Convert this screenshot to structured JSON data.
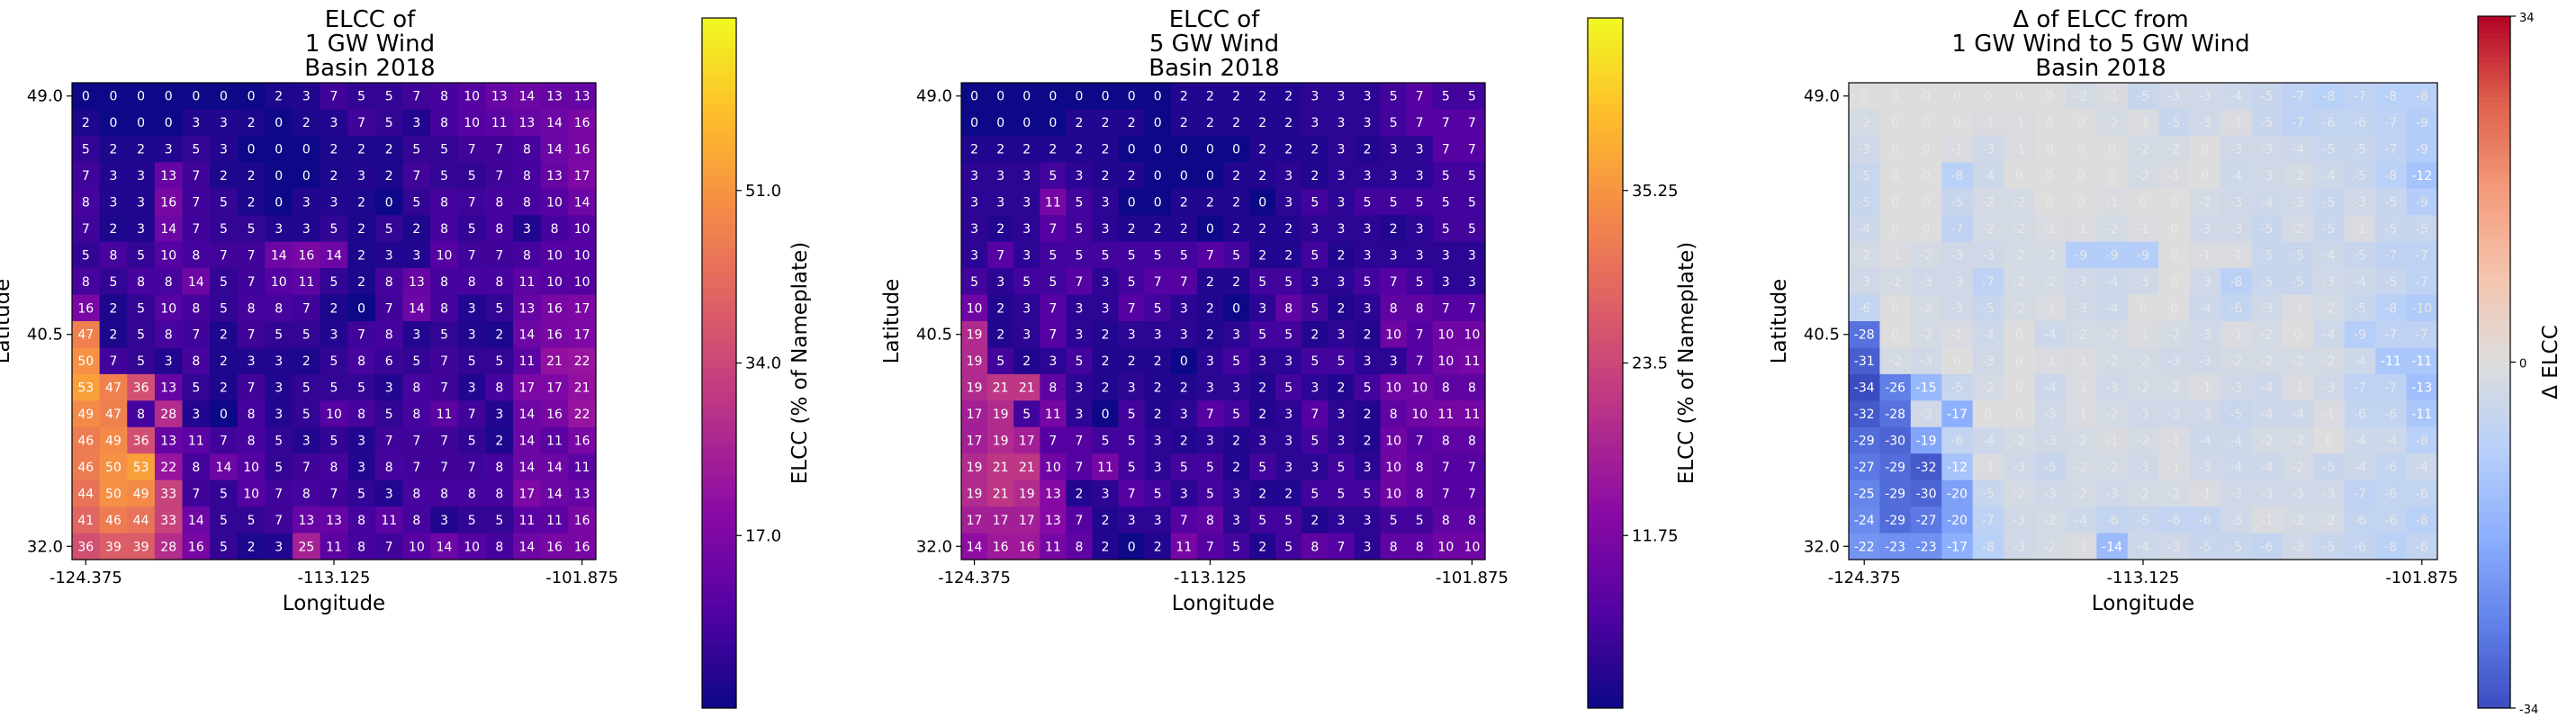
{
  "figure": {
    "panels": [
      {
        "title_lines": [
          "ELCC of",
          "1 GW Wind",
          "Basin 2018"
        ],
        "cbar_ticks": [
          17.0,
          34.0,
          51.0
        ],
        "cbar_label": "ELCC (% of Nameplate)"
      },
      {
        "title_lines": [
          "ELCC of",
          "5 GW Wind",
          "Basin 2018"
        ],
        "cbar_ticks": [
          11.75,
          23.5,
          35.25
        ],
        "cbar_label": "ELCC (% of Nameplate)"
      },
      {
        "title_lines": [
          "Δ of ELCC from",
          "1 GW Wind to 5 GW Wind",
          "Basin 2018"
        ],
        "cbar_ticks": [
          -34,
          0,
          34
        ],
        "cbar_label": "Δ ELCC"
      }
    ]
  },
  "chart_data": [
    {
      "type": "heatmap",
      "title": "ELCC of 1 GW Wind Basin 2018",
      "xlabel": "Longitude",
      "ylabel": "Latitude",
      "x_ticks": [
        "-124.375",
        "-113.125",
        "-101.875"
      ],
      "y_ticks": [
        "49.0",
        "40.5",
        "32.0"
      ],
      "colormap": "plasma",
      "vmin": 0,
      "vmax": 68,
      "colorbar_ticks": [
        17.0,
        34.0,
        51.0
      ],
      "colorbar_label": "ELCC (% of Nameplate)",
      "rows_top_to_bottom": [
        [
          0,
          0,
          0,
          0,
          0,
          0,
          0,
          2,
          3,
          7,
          5,
          5,
          7,
          8,
          10,
          13,
          14,
          13,
          13
        ],
        [
          2,
          0,
          0,
          0,
          3,
          3,
          2,
          0,
          2,
          3,
          7,
          5,
          3,
          8,
          10,
          11,
          13,
          14,
          16
        ],
        [
          5,
          2,
          2,
          3,
          5,
          3,
          0,
          0,
          0,
          2,
          2,
          2,
          5,
          5,
          7,
          7,
          8,
          14,
          16
        ],
        [
          7,
          3,
          3,
          13,
          7,
          2,
          2,
          0,
          0,
          2,
          3,
          2,
          7,
          5,
          5,
          7,
          8,
          13,
          17
        ],
        [
          8,
          3,
          3,
          16,
          7,
          5,
          2,
          0,
          3,
          3,
          2,
          0,
          5,
          8,
          7,
          8,
          8,
          10,
          14
        ],
        [
          7,
          2,
          3,
          14,
          7,
          5,
          5,
          3,
          3,
          5,
          2,
          5,
          2,
          8,
          5,
          8,
          3,
          8,
          10
        ],
        [
          5,
          8,
          5,
          10,
          8,
          7,
          7,
          14,
          16,
          14,
          2,
          3,
          3,
          10,
          7,
          7,
          8,
          10,
          10
        ],
        [
          8,
          5,
          8,
          8,
          14,
          5,
          7,
          10,
          11,
          5,
          2,
          8,
          13,
          8,
          8,
          8,
          11,
          10,
          10
        ],
        [
          16,
          2,
          5,
          10,
          8,
          5,
          8,
          8,
          7,
          2,
          0,
          7,
          14,
          8,
          3,
          5,
          13,
          16,
          17
        ],
        [
          47,
          2,
          5,
          8,
          7,
          2,
          7,
          5,
          5,
          3,
          7,
          8,
          3,
          5,
          3,
          2,
          14,
          16,
          17
        ],
        [
          50,
          7,
          5,
          3,
          8,
          2,
          3,
          3,
          2,
          5,
          8,
          6,
          5,
          7,
          5,
          5,
          11,
          21,
          22
        ],
        [
          53,
          47,
          36,
          13,
          5,
          2,
          7,
          3,
          5,
          5,
          5,
          3,
          8,
          7,
          3,
          8,
          17,
          17,
          21
        ],
        [
          49,
          47,
          8,
          28,
          3,
          0,
          8,
          3,
          5,
          10,
          8,
          5,
          8,
          11,
          7,
          3,
          14,
          16,
          22
        ],
        [
          46,
          49,
          36,
          13,
          11,
          7,
          8,
          5,
          3,
          5,
          3,
          7,
          7,
          7,
          5,
          2,
          14,
          11,
          16
        ],
        [
          46,
          50,
          53,
          22,
          8,
          14,
          10,
          5,
          7,
          8,
          3,
          8,
          7,
          7,
          7,
          8,
          14,
          14,
          11
        ],
        [
          44,
          50,
          49,
          33,
          7,
          5,
          10,
          7,
          8,
          7,
          5,
          3,
          8,
          8,
          8,
          8,
          17,
          14,
          13
        ],
        [
          41,
          46,
          44,
          33,
          14,
          5,
          5,
          7,
          13,
          13,
          8,
          11,
          8,
          3,
          5,
          5,
          11,
          11,
          16
        ],
        [
          36,
          39,
          39,
          28,
          16,
          5,
          2,
          3,
          25,
          11,
          8,
          7,
          10,
          14,
          10,
          8,
          14,
          16,
          16
        ]
      ]
    },
    {
      "type": "heatmap",
      "title": "ELCC of 5 GW Wind Basin 2018",
      "xlabel": "Longitude",
      "ylabel": "Latitude",
      "x_ticks": [
        "-124.375",
        "-113.125",
        "-101.875"
      ],
      "y_ticks": [
        "49.0",
        "40.5",
        "32.0"
      ],
      "colormap": "plasma",
      "vmin": 0,
      "vmax": 47,
      "colorbar_ticks": [
        11.75,
        23.5,
        35.25
      ],
      "colorbar_label": "ELCC (% of Nameplate)",
      "rows_top_to_bottom": [
        [
          0,
          0,
          0,
          0,
          0,
          0,
          0,
          0,
          2,
          2,
          2,
          2,
          2,
          3,
          3,
          3,
          5,
          7,
          5,
          5
        ],
        [
          0,
          0,
          0,
          0,
          2,
          2,
          2,
          0,
          2,
          2,
          2,
          2,
          2,
          3,
          3,
          3,
          5,
          7,
          7,
          7
        ],
        [
          2,
          2,
          2,
          2,
          2,
          2,
          0,
          0,
          0,
          0,
          0,
          2,
          2,
          2,
          3,
          2,
          3,
          3,
          7,
          7
        ],
        [
          3,
          3,
          3,
          5,
          3,
          2,
          2,
          0,
          0,
          0,
          2,
          2,
          3,
          2,
          3,
          3,
          3,
          3,
          5,
          5
        ],
        [
          3,
          3,
          3,
          11,
          5,
          3,
          0,
          0,
          2,
          2,
          2,
          0,
          3,
          5,
          3,
          5,
          5,
          5,
          5,
          5
        ],
        [
          3,
          2,
          3,
          7,
          5,
          3,
          2,
          2,
          2,
          0,
          2,
          2,
          2,
          3,
          3,
          3,
          2,
          3,
          5,
          5
        ],
        [
          3,
          7,
          3,
          5,
          5,
          5,
          5,
          5,
          5,
          7,
          5,
          2,
          2,
          5,
          2,
          3,
          3,
          3,
          3,
          3
        ],
        [
          5,
          3,
          5,
          5,
          7,
          3,
          5,
          7,
          7,
          2,
          2,
          5,
          5,
          3,
          3,
          5,
          7,
          5,
          3,
          3
        ],
        [
          10,
          2,
          3,
          7,
          3,
          3,
          7,
          5,
          3,
          2,
          0,
          3,
          8,
          5,
          2,
          3,
          8,
          8,
          7,
          7
        ],
        [
          19,
          2,
          3,
          7,
          3,
          2,
          3,
          3,
          3,
          2,
          3,
          5,
          5,
          2,
          3,
          2,
          10,
          7,
          10,
          10
        ],
        [
          19,
          5,
          2,
          3,
          5,
          2,
          2,
          2,
          0,
          3,
          5,
          3,
          3,
          5,
          5,
          3,
          3,
          7,
          10,
          11
        ],
        [
          19,
          21,
          21,
          8,
          3,
          2,
          3,
          2,
          2,
          3,
          3,
          2,
          5,
          3,
          2,
          5,
          10,
          10,
          8,
          8
        ],
        [
          17,
          19,
          5,
          11,
          3,
          0,
          5,
          2,
          3,
          7,
          5,
          2,
          3,
          7,
          3,
          2,
          8,
          10,
          11,
          11
        ],
        [
          17,
          19,
          17,
          7,
          7,
          5,
          5,
          3,
          2,
          3,
          2,
          3,
          3,
          5,
          3,
          2,
          10,
          7,
          8,
          8
        ],
        [
          19,
          21,
          21,
          10,
          7,
          11,
          5,
          3,
          5,
          5,
          2,
          5,
          3,
          3,
          5,
          3,
          10,
          8,
          7,
          7
        ],
        [
          19,
          21,
          19,
          13,
          2,
          3,
          7,
          5,
          3,
          5,
          3,
          2,
          2,
          5,
          5,
          5,
          10,
          8,
          7,
          7
        ],
        [
          17,
          17,
          17,
          13,
          7,
          2,
          3,
          3,
          7,
          8,
          3,
          5,
          5,
          2,
          3,
          3,
          5,
          5,
          8,
          8
        ],
        [
          14,
          16,
          16,
          11,
          8,
          2,
          0,
          2,
          11,
          7,
          5,
          2,
          5,
          8,
          7,
          3,
          8,
          8,
          10,
          10
        ]
      ]
    },
    {
      "type": "heatmap",
      "title": "Δ of ELCC from 1 GW Wind to 5 GW Wind Basin 2018",
      "xlabel": "Longitude",
      "ylabel": "Latitude",
      "x_ticks": [
        "-124.375",
        "-113.125",
        "-101.875"
      ],
      "y_ticks": [
        "49.0",
        "40.5",
        "32.0"
      ],
      "colormap": "coolwarm",
      "vmin": -34,
      "vmax": 34,
      "colorbar_ticks": [
        -34,
        0,
        34
      ],
      "colorbar_label": "Δ ELCC",
      "rows_top_to_bottom": [
        [
          0,
          0,
          0,
          0,
          0,
          0,
          0,
          -2,
          -1,
          -5,
          -3,
          -3,
          -4,
          -5,
          -7,
          -8,
          -7,
          -8,
          -8
        ],
        [
          -2,
          0,
          0,
          0,
          -1,
          -1,
          0,
          0,
          -2,
          -1,
          -5,
          -3,
          -1,
          -5,
          -7,
          -6,
          -6,
          -7,
          -9
        ],
        [
          -3,
          0,
          0,
          -1,
          -3,
          -1,
          0,
          0,
          0,
          -2,
          -2,
          0,
          -3,
          -3,
          -4,
          -5,
          -5,
          -7,
          -9
        ],
        [
          -5,
          0,
          0,
          -8,
          -4,
          0,
          0,
          0,
          0,
          -2,
          -1,
          0,
          -4,
          -3,
          -2,
          -4,
          -5,
          -8,
          -12
        ],
        [
          -5,
          0,
          0,
          -5,
          -2,
          -2,
          0,
          0,
          -1,
          0,
          0,
          -2,
          -3,
          -4,
          -3,
          -5,
          -3,
          -5,
          -9
        ],
        [
          -4,
          0,
          0,
          -7,
          -2,
          -2,
          -1,
          -1,
          -2,
          -1,
          0,
          -3,
          -3,
          -5,
          -2,
          -5,
          -1,
          -5,
          -5
        ],
        [
          -2,
          -1,
          -2,
          -3,
          -3,
          -2,
          -2,
          -9,
          -9,
          -9,
          0,
          -1,
          -1,
          -5,
          -5,
          -4,
          -5,
          -7,
          -7
        ],
        [
          -3,
          -2,
          -3,
          -3,
          -7,
          -2,
          -2,
          -3,
          -4,
          -3,
          0,
          -3,
          -8,
          -5,
          -5,
          -3,
          -4,
          -5,
          -7
        ],
        [
          -6,
          0,
          -2,
          -3,
          -5,
          -2,
          -1,
          -3,
          -4,
          0,
          0,
          -4,
          -6,
          -3,
          -1,
          -2,
          -5,
          -8,
          -10
        ],
        [
          -28,
          0,
          -2,
          -1,
          -4,
          0,
          -4,
          -2,
          -2,
          -1,
          -2,
          -3,
          -1,
          -2,
          0,
          -4,
          -9,
          -7,
          -7
        ],
        [
          -31,
          -2,
          -3,
          0,
          -3,
          0,
          -1,
          -1,
          -2,
          -2,
          -3,
          -3,
          -2,
          -2,
          -2,
          -2,
          -4,
          -11,
          -11
        ],
        [
          -34,
          -26,
          -15,
          -5,
          -2,
          0,
          -4,
          -1,
          -3,
          -2,
          -2,
          -1,
          -3,
          -4,
          -1,
          -3,
          -7,
          -7,
          -13
        ],
        [
          -32,
          -28,
          -3,
          -17,
          0,
          0,
          -3,
          -1,
          -2,
          -3,
          -3,
          -3,
          -5,
          -4,
          -4,
          -1,
          -6,
          -6,
          -11
        ],
        [
          -29,
          -30,
          -19,
          -6,
          -4,
          -2,
          -3,
          -2,
          -1,
          -2,
          -1,
          -4,
          -4,
          -2,
          -2,
          0,
          -4,
          -4,
          -8
        ],
        [
          -27,
          -29,
          -32,
          -12,
          -1,
          -3,
          -5,
          -2,
          -2,
          -3,
          -1,
          -3,
          -4,
          -4,
          -2,
          -5,
          -4,
          -6,
          -4
        ],
        [
          -25,
          -29,
          -30,
          -20,
          -5,
          -2,
          -3,
          -2,
          -3,
          -2,
          -2,
          -1,
          -3,
          -3,
          -3,
          -3,
          -7,
          -6,
          -6
        ],
        [
          -24,
          -29,
          -27,
          -20,
          -7,
          -3,
          -2,
          -4,
          -6,
          -5,
          -6,
          -6,
          -3,
          -1,
          -2,
          -2,
          -6,
          -6,
          -8
        ],
        [
          -22,
          -23,
          -23,
          -17,
          -8,
          -3,
          -2,
          -1,
          -14,
          -4,
          -3,
          -5,
          -5,
          -6,
          -3,
          -5,
          -6,
          -8,
          -6
        ]
      ]
    }
  ]
}
